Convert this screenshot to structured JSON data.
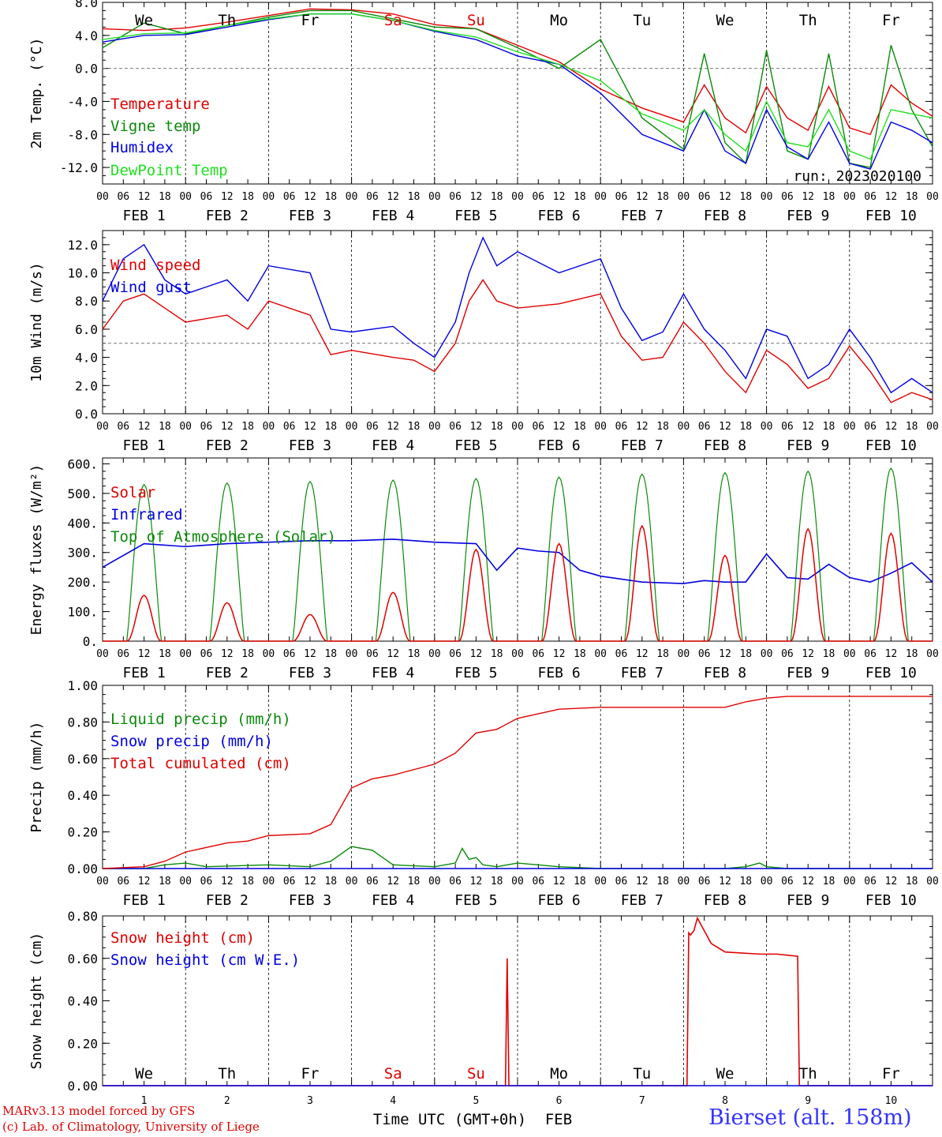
{
  "colors": {
    "red": "#e00000",
    "green": "#0a8a0a",
    "blue": "#0000e0",
    "lightgreen": "#20e020",
    "black": "#000000",
    "title_blue": "#3333ff"
  },
  "day_labels": [
    "We",
    "Th",
    "Fr",
    "Sa",
    "Su",
    "Mo",
    "Tu",
    "We",
    "Th",
    "Fr"
  ],
  "day_label_colors": [
    "black",
    "black",
    "black",
    "red",
    "red",
    "black",
    "black",
    "black",
    "black",
    "black"
  ],
  "hour_ticks": [
    "00",
    "06",
    "12",
    "18"
  ],
  "date_labels": [
    "FEB  1",
    "FEB  2",
    "FEB  3",
    "FEB  4",
    "FEB  5",
    "FEB  6",
    "FEB  7",
    "FEB  8",
    "FEB  9",
    "FEB 10"
  ],
  "bottom_day_numbers": [
    "1",
    "2",
    "3",
    "4",
    "5",
    "6",
    "7",
    "8",
    "9",
    "10"
  ],
  "x_axis_label_a": "Time UTC (GMT+0h)",
  "x_axis_label_b": "FEB",
  "run_label": "run: 2023020100",
  "footer": {
    "line1": "MARv3.13 model forced by GFS",
    "line2": "(c) Lab. of Climatology, University of Liege",
    "station": "Bierset (alt. 158m)"
  },
  "chart_data": [
    {
      "type": "line",
      "ylabel": "2m Temp. (°C)",
      "ylim": [
        -14,
        8
      ],
      "yticks": [
        "8.0",
        "4.0",
        "0.0",
        "-4.0",
        "-8.0",
        "-12.0"
      ],
      "ytick_values": [
        8,
        4,
        0,
        -4,
        -8,
        -12
      ],
      "ref_line": 0,
      "x_unit": "hours since FEB 1 00 UTC",
      "series": [
        {
          "name": "Temperature",
          "color": "red",
          "x": [
            0,
            12,
            24,
            36,
            48,
            60,
            72,
            84,
            96,
            108,
            120,
            132,
            144,
            156,
            168,
            174,
            180,
            186,
            192,
            198,
            204,
            210,
            216,
            222,
            228,
            234,
            240
          ],
          "y": [
            4.8,
            4.6,
            4.9,
            5.6,
            6.4,
            7.2,
            7.1,
            6.6,
            5.3,
            4.8,
            2.8,
            0.8,
            -2.5,
            -4.8,
            -6.5,
            -2.0,
            -6.0,
            -7.8,
            -2.2,
            -6.0,
            -7.5,
            -2.2,
            -7.2,
            -8.0,
            -2.0,
            -4.2,
            -5.8
          ]
        },
        {
          "name": "Vigne temp",
          "color": "green",
          "x": [
            0,
            12,
            24,
            36,
            48,
            60,
            72,
            84,
            96,
            108,
            120,
            132,
            144,
            156,
            168,
            174,
            180,
            186,
            192,
            198,
            204,
            210,
            216,
            222,
            228,
            234,
            240
          ],
          "y": [
            2.5,
            5.5,
            4.2,
            5.2,
            6.2,
            7.0,
            7.0,
            6.0,
            5.0,
            4.8,
            2.5,
            0.0,
            3.5,
            -6.0,
            -9.8,
            1.8,
            -9.0,
            -11.5,
            2.2,
            -10.0,
            -11.0,
            1.8,
            -11.5,
            -12.0,
            2.8,
            -5.0,
            -9.5
          ]
        },
        {
          "name": "Humidex",
          "color": "blue",
          "x": [
            0,
            12,
            24,
            36,
            48,
            60,
            72,
            84,
            96,
            108,
            120,
            132,
            144,
            156,
            168,
            174,
            180,
            186,
            192,
            198,
            204,
            210,
            216,
            222,
            228,
            234,
            240
          ],
          "y": [
            3.2,
            4.0,
            4.1,
            5.0,
            5.9,
            6.6,
            6.6,
            5.8,
            4.5,
            3.5,
            1.5,
            0.5,
            -3.0,
            -8.0,
            -10.0,
            -5.0,
            -10.0,
            -11.5,
            -5.0,
            -9.5,
            -11.0,
            -6.5,
            -11.5,
            -12.2,
            -6.5,
            -7.5,
            -9.0
          ]
        },
        {
          "name": "DewPoint Temp",
          "color": "lightgreen",
          "x": [
            0,
            12,
            24,
            36,
            48,
            60,
            72,
            84,
            96,
            108,
            120,
            132,
            144,
            156,
            168,
            174,
            180,
            186,
            192,
            198,
            204,
            210,
            216,
            222,
            228,
            234,
            240
          ],
          "y": [
            3.5,
            4.2,
            4.3,
            5.2,
            6.0,
            6.6,
            6.6,
            5.8,
            4.6,
            3.8,
            2.0,
            0.5,
            -1.5,
            -5.5,
            -7.5,
            -5.0,
            -8.0,
            -10.0,
            -4.0,
            -9.0,
            -9.5,
            -5.0,
            -10.0,
            -11.0,
            -5.0,
            -5.5,
            -6.0
          ]
        }
      ]
    },
    {
      "type": "line",
      "ylabel": "10m Wind (m/s)",
      "ylim": [
        0,
        13
      ],
      "yticks": [
        "12.0",
        "10.0",
        "8.0",
        "6.0",
        "4.0",
        "2.0",
        "0.0"
      ],
      "ytick_values": [
        12,
        10,
        8,
        6,
        4,
        2,
        0
      ],
      "ref_line": 5,
      "x_unit": "hours since FEB 1 00 UTC",
      "series": [
        {
          "name": "Wind speed",
          "color": "red",
          "x": [
            0,
            6,
            12,
            18,
            24,
            36,
            42,
            48,
            60,
            66,
            72,
            84,
            90,
            96,
            102,
            106,
            110,
            114,
            120,
            132,
            144,
            150,
            156,
            162,
            168,
            174,
            180,
            186,
            192,
            198,
            204,
            210,
            216,
            222,
            228,
            234,
            240
          ],
          "y": [
            6.0,
            8.0,
            8.5,
            7.5,
            6.5,
            7.0,
            6.0,
            8.0,
            7.0,
            4.2,
            4.5,
            4.0,
            3.8,
            3.0,
            5.0,
            8.0,
            9.5,
            8.0,
            7.5,
            7.8,
            8.5,
            5.5,
            3.8,
            4.0,
            6.5,
            5.0,
            3.0,
            1.5,
            4.5,
            3.5,
            1.8,
            2.5,
            4.8,
            3.0,
            0.8,
            1.5,
            1.0
          ]
        },
        {
          "name": "Wind gust",
          "color": "blue",
          "x": [
            0,
            6,
            12,
            18,
            24,
            36,
            42,
            48,
            60,
            66,
            72,
            84,
            90,
            96,
            102,
            106,
            110,
            114,
            120,
            132,
            144,
            150,
            156,
            162,
            168,
            174,
            180,
            186,
            192,
            198,
            204,
            210,
            216,
            222,
            228,
            234,
            240
          ],
          "y": [
            8.0,
            11.0,
            12.0,
            9.5,
            8.5,
            9.5,
            8.0,
            10.5,
            10.0,
            6.0,
            5.8,
            6.2,
            5.0,
            4.0,
            6.5,
            10.0,
            12.5,
            10.5,
            11.5,
            10.0,
            11.0,
            7.5,
            5.2,
            5.8,
            8.5,
            6.0,
            4.5,
            2.5,
            6.0,
            5.5,
            2.5,
            3.5,
            6.0,
            4.0,
            1.5,
            2.5,
            1.5
          ]
        }
      ]
    },
    {
      "type": "line",
      "ylabel": "Energy fluxes (W/m²)",
      "ylim": [
        0,
        620
      ],
      "yticks": [
        "600.",
        "500.",
        "400.",
        "300.",
        "200.",
        "100.",
        "0."
      ],
      "ytick_values": [
        600,
        500,
        400,
        300,
        200,
        100,
        0
      ],
      "x_unit": "hours since FEB 1 00 UTC",
      "toa_peaks": [
        530,
        535,
        540,
        545,
        550,
        555,
        565,
        570,
        575,
        585
      ],
      "solar_peaks": [
        155,
        130,
        90,
        165,
        310,
        330,
        390,
        290,
        380,
        365
      ],
      "series": [
        {
          "name": "Solar",
          "color": "red"
        },
        {
          "name": "Infrared",
          "color": "blue",
          "x": [
            0,
            12,
            24,
            36,
            48,
            60,
            72,
            84,
            96,
            108,
            114,
            120,
            126,
            132,
            138,
            144,
            156,
            168,
            174,
            180,
            186,
            192,
            198,
            204,
            210,
            216,
            222,
            228,
            234,
            240
          ],
          "y": [
            250,
            330,
            320,
            330,
            335,
            340,
            340,
            345,
            335,
            330,
            240,
            315,
            305,
            300,
            240,
            220,
            200,
            195,
            205,
            200,
            200,
            295,
            215,
            210,
            260,
            215,
            200,
            230,
            265,
            200
          ]
        },
        {
          "name": "Top of Atmosphere (Solar)",
          "color": "green"
        }
      ]
    },
    {
      "type": "line",
      "ylabel": "Precip (mm/h)",
      "ylim": [
        0,
        1.0
      ],
      "yticks": [
        "1.00",
        "0.80",
        "0.60",
        "0.40",
        "0.20",
        "0.00"
      ],
      "ytick_values": [
        1.0,
        0.8,
        0.6,
        0.4,
        0.2,
        0.0
      ],
      "x_unit": "hours since FEB 1 00 UTC",
      "series": [
        {
          "name": "Liquid precip (mm/h)",
          "color": "green",
          "x": [
            0,
            12,
            18,
            24,
            30,
            48,
            60,
            66,
            72,
            78,
            84,
            96,
            102,
            104,
            106,
            108,
            110,
            114,
            120,
            132,
            144,
            156,
            168,
            180,
            186,
            190,
            192,
            198,
            204,
            216,
            240
          ],
          "y": [
            0,
            0,
            0.02,
            0.03,
            0.01,
            0.02,
            0.01,
            0.04,
            0.12,
            0.1,
            0.02,
            0.01,
            0.03,
            0.11,
            0.05,
            0.06,
            0.02,
            0.01,
            0.03,
            0.01,
            0.0,
            0.0,
            0.0,
            0.0,
            0.01,
            0.03,
            0.01,
            0.0,
            0.0,
            0.0,
            0.0
          ]
        },
        {
          "name": "Snow precip (mm/h)",
          "color": "blue",
          "x": [
            0,
            240
          ],
          "y": [
            0,
            0
          ]
        },
        {
          "name": "Total cumulated (cm)",
          "color": "red",
          "x": [
            0,
            12,
            18,
            24,
            36,
            42,
            48,
            60,
            66,
            72,
            78,
            84,
            96,
            102,
            108,
            114,
            120,
            132,
            144,
            156,
            168,
            174,
            180,
            186,
            192,
            198,
            204,
            240
          ],
          "y": [
            0,
            0.01,
            0.04,
            0.09,
            0.14,
            0.15,
            0.18,
            0.19,
            0.24,
            0.44,
            0.49,
            0.51,
            0.57,
            0.63,
            0.74,
            0.76,
            0.82,
            0.87,
            0.88,
            0.88,
            0.88,
            0.88,
            0.88,
            0.91,
            0.93,
            0.94,
            0.94,
            0.94
          ]
        }
      ]
    },
    {
      "type": "line",
      "ylabel": "Snow height (cm)",
      "ylim": [
        0,
        0.8
      ],
      "yticks": [
        "0.80",
        "0.60",
        "0.40",
        "0.20",
        "0.00"
      ],
      "ytick_values": [
        0.8,
        0.6,
        0.4,
        0.2,
        0.0
      ],
      "x_unit": "hours since FEB 1 00 UTC",
      "series": [
        {
          "name": "Snow height (cm)",
          "color": "red",
          "x": [
            0,
            116.5,
            117,
            117.5,
            118,
            169,
            169.5,
            170,
            171,
            172,
            176,
            180,
            190,
            195,
            201,
            201.5,
            202,
            240
          ],
          "y": [
            0,
            0,
            0.6,
            0,
            0,
            0,
            0.72,
            0.71,
            0.73,
            0.79,
            0.67,
            0.63,
            0.62,
            0.62,
            0.61,
            0.0,
            0,
            0
          ]
        },
        {
          "name": "Snow height (cm W.E.)",
          "color": "blue",
          "x": [
            0,
            240
          ],
          "y": [
            0,
            0
          ]
        }
      ]
    }
  ]
}
